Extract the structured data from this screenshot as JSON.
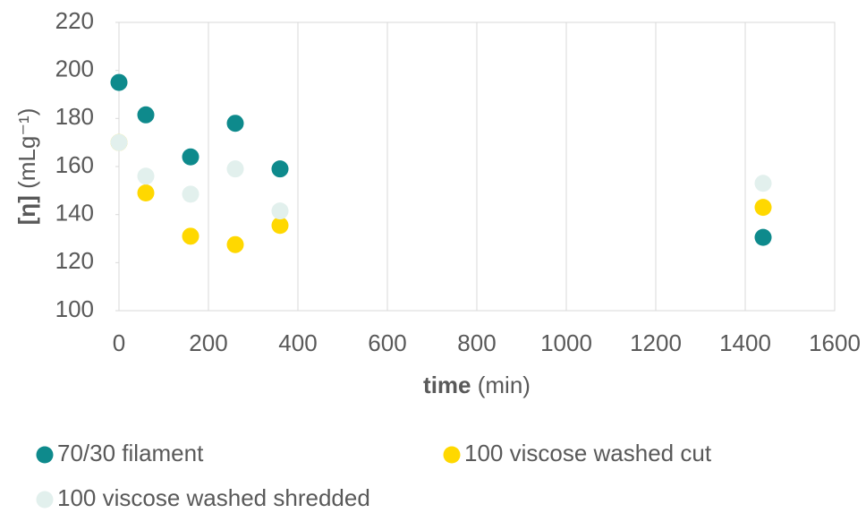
{
  "chart_data": {
    "type": "scatter",
    "x_label": {
      "bold": "time",
      "rest": "(min)"
    },
    "y_label": {
      "bold": "[η]",
      "rest": "(mLg⁻¹)"
    },
    "xlim": [
      0,
      1600
    ],
    "xticks": [
      0,
      200,
      400,
      600,
      800,
      1000,
      1200,
      1400,
      1600
    ],
    "ylim": [
      100,
      220
    ],
    "yticks": [
      100,
      120,
      140,
      160,
      180,
      200,
      220
    ],
    "grid": "x",
    "series": [
      {
        "name": "70/30 filament",
        "color": "#0e8a8c",
        "x": [
          0,
          60,
          160,
          260,
          360,
          1440
        ],
        "values": [
          195,
          181.5,
          164,
          178,
          159,
          130.5
        ]
      },
      {
        "name": "100 viscose washed cut",
        "color": "#ffd800",
        "x": [
          0,
          60,
          160,
          260,
          360,
          1440
        ],
        "values": [
          170,
          149,
          131,
          127.5,
          135.5,
          143
        ]
      },
      {
        "name": "100 viscose washed shredded",
        "color": "#e2f0ed",
        "x": [
          0,
          60,
          160,
          260,
          360,
          1440
        ],
        "values": [
          170,
          156,
          148.5,
          159,
          141.5,
          153
        ]
      }
    ]
  }
}
